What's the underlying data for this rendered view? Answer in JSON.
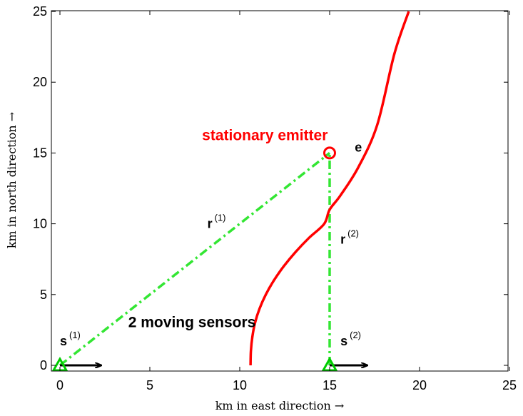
{
  "chart_data": {
    "type": "line",
    "xlabel": "km in east direction →",
    "ylabel": "km in north direction →",
    "xlim": [
      0,
      25
    ],
    "ylim": [
      0,
      25
    ],
    "xticks": [
      "0",
      "5",
      "10",
      "15",
      "20",
      "25"
    ],
    "yticks": [
      "0",
      "5",
      "10",
      "15",
      "20",
      "25"
    ],
    "grid": false,
    "colors": {
      "curve": "#ff0000",
      "sensor": "#00cc00",
      "range_line": "#33e633",
      "arrow": "#000000"
    },
    "series": [
      {
        "style": "solid-red",
        "x": [
          10.6,
          10.62,
          10.7,
          10.85,
          11.1,
          11.45,
          11.9,
          12.45,
          13.1,
          13.85,
          14.7,
          15.0,
          15.6,
          16.6,
          17.65,
          18.6,
          19.4
        ],
        "y": [
          0,
          1,
          2,
          3,
          4,
          5,
          6,
          7,
          8,
          9,
          10,
          11,
          12,
          14,
          17,
          22,
          25
        ]
      }
    ],
    "emitter": {
      "x": 15,
      "y": 15,
      "label": "e",
      "annotation": "stationary emitter"
    },
    "sensors": [
      {
        "x": 0,
        "y": 0,
        "symbol": "s",
        "superscript": "(1)"
      },
      {
        "x": 15,
        "y": 0,
        "symbol": "s",
        "superscript": "(2)"
      }
    ],
    "range_lines": [
      {
        "from": [
          0,
          0
        ],
        "to": [
          15,
          15
        ],
        "symbol": "r",
        "superscript": "(1)"
      },
      {
        "from": [
          15,
          0
        ],
        "to": [
          15,
          15
        ],
        "symbol": "r",
        "superscript": "(2)"
      }
    ],
    "velocity_arrows": [
      {
        "from": [
          0,
          0
        ],
        "to": [
          2.3,
          0
        ]
      },
      {
        "from": [
          15,
          0
        ],
        "to": [
          17.1,
          0
        ]
      }
    ],
    "annotations": [
      {
        "text": "stationary emitter",
        "x": 11.4,
        "y": 15.9
      },
      {
        "text": "2 moving sensors",
        "x": 3.8,
        "y": 2.7
      },
      {
        "text": "e",
        "x": 16.4,
        "y": 15.1
      }
    ]
  }
}
